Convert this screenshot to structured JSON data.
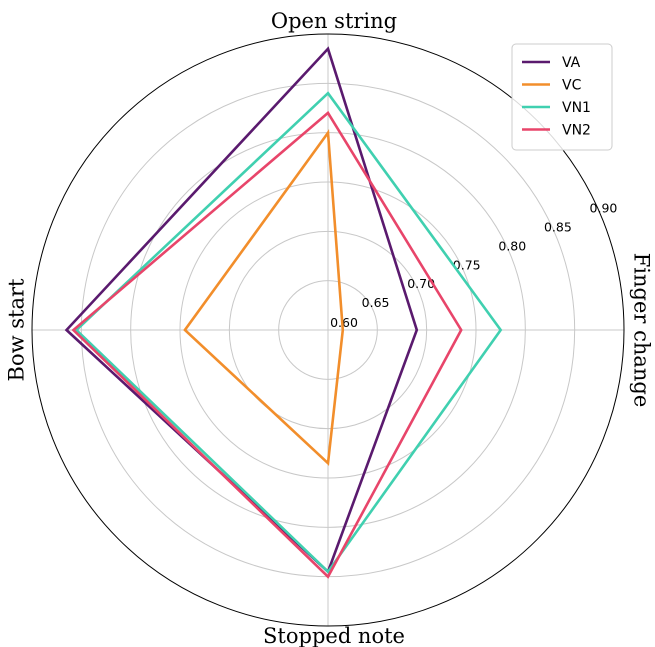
{
  "chart_data": {
    "type": "radar",
    "categories": [
      "Open string",
      "Finger change",
      "Stopped note",
      "Bow start"
    ],
    "rlim": [
      0.6,
      0.9
    ],
    "rticks": [
      0.6,
      0.65,
      0.7,
      0.75,
      0.8,
      0.85,
      0.9
    ],
    "rtick_labels": [
      "0.60",
      "0.65",
      "0.70",
      "0.75",
      "0.80",
      "0.85",
      "0.90"
    ],
    "grid": true,
    "legend_position": "top-right",
    "series": [
      {
        "name": "VA",
        "color": "#5a1a6e",
        "values": [
          0.885,
          0.69,
          0.845,
          0.865
        ]
      },
      {
        "name": "VC",
        "color": "#f28e2b",
        "values": [
          0.8,
          0.615,
          0.735,
          0.745
        ]
      },
      {
        "name": "VN1",
        "color": "#40d0b0",
        "values": [
          0.84,
          0.775,
          0.845,
          0.855
        ]
      },
      {
        "name": "VN2",
        "color": "#e8456a",
        "values": [
          0.82,
          0.735,
          0.85,
          0.858
        ]
      }
    ]
  }
}
